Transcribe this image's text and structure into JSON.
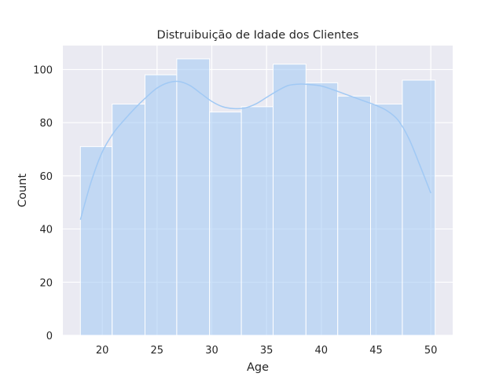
{
  "chart_data": {
    "type": "bar",
    "subtype": "histogram-with-kde",
    "title": "Distruibuição de Idade dos Clientes",
    "xlabel": "Age",
    "ylabel": "Count",
    "bins": [
      {
        "start": 18.0,
        "end": 20.9,
        "count": 71
      },
      {
        "start": 20.9,
        "end": 23.9,
        "count": 87
      },
      {
        "start": 23.9,
        "end": 26.8,
        "count": 98
      },
      {
        "start": 26.8,
        "end": 29.8,
        "count": 104
      },
      {
        "start": 29.8,
        "end": 32.7,
        "count": 84
      },
      {
        "start": 32.7,
        "end": 35.6,
        "count": 86
      },
      {
        "start": 35.6,
        "end": 38.6,
        "count": 102
      },
      {
        "start": 38.6,
        "end": 41.5,
        "count": 95
      },
      {
        "start": 41.5,
        "end": 44.5,
        "count": 90
      },
      {
        "start": 44.5,
        "end": 47.4,
        "count": 87
      },
      {
        "start": 47.4,
        "end": 50.4,
        "count": 96
      }
    ],
    "kde": {
      "x": [
        18,
        19,
        20,
        21,
        22,
        23,
        24,
        25,
        26,
        27,
        28,
        29,
        30,
        31,
        32,
        33,
        34,
        35,
        36,
        37,
        38,
        39,
        40,
        41,
        42,
        43,
        44,
        45,
        46,
        47,
        48,
        49,
        50
      ],
      "y": [
        43.5,
        58,
        69,
        76,
        81,
        85.5,
        89.5,
        93,
        95,
        95.5,
        94,
        91,
        88,
        86,
        85.3,
        85.5,
        87,
        89.5,
        92,
        94,
        94.5,
        94.3,
        93.8,
        92.5,
        91,
        89.5,
        88,
        86.5,
        84.5,
        81,
        74,
        64,
        53.5
      ]
    },
    "xlim": [
      16.4,
      52
    ],
    "ylim": [
      0,
      109
    ],
    "xticks": [
      20,
      25,
      30,
      35,
      40,
      45,
      50
    ],
    "yticks": [
      0,
      20,
      40,
      60,
      80,
      100
    ],
    "grid": true,
    "style": "seaborn-darkgrid",
    "colors": {
      "background": "#eaeaf2",
      "grid": "#ffffff",
      "bar_fill": "#a1c9f4",
      "bar_edge": "#ffffff",
      "kde_line": "#a1c9f4"
    }
  }
}
